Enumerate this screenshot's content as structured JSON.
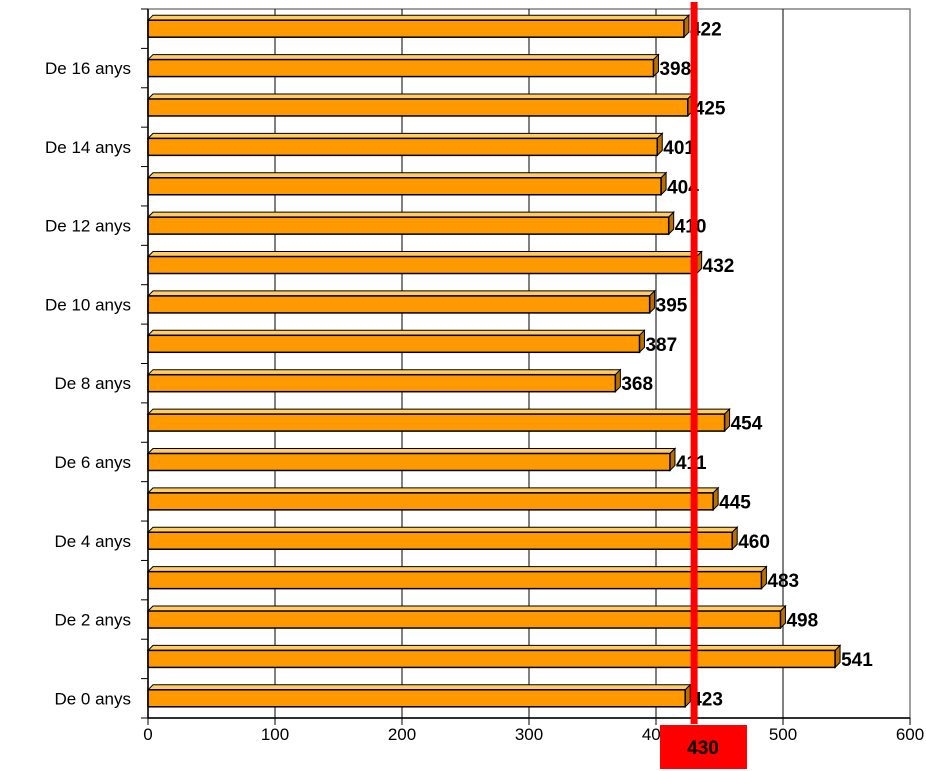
{
  "chart_data": {
    "type": "bar",
    "orientation": "horizontal",
    "categories": [
      "De 0 anys",
      "",
      "De 2 anys",
      "",
      "De 4 anys",
      "",
      "De 6 anys",
      "",
      "De 8 anys",
      "",
      "De 10 anys",
      "",
      "De 12 anys",
      "",
      "De 14 anys",
      "",
      "De 16 anys",
      ""
    ],
    "values": [
      423,
      541,
      498,
      483,
      460,
      445,
      411,
      454,
      368,
      387,
      395,
      432,
      410,
      404,
      401,
      425,
      398,
      422
    ],
    "value_labels": [
      "423",
      "541",
      "498",
      "483",
      "460",
      "445",
      "411",
      "454",
      "368",
      "387",
      "395",
      "432",
      "410",
      "404",
      "401",
      "425",
      "398",
      "422"
    ],
    "title": "",
    "xlabel": "",
    "ylabel": "",
    "xlim": [
      0,
      600
    ],
    "x_ticks": [
      "0",
      "100",
      "200",
      "300",
      "400",
      "500",
      "600"
    ],
    "grid": true,
    "legend": "none",
    "bar_color": "#FF9900",
    "bar_edge_color": "#000000",
    "reference_line": {
      "value": 430,
      "label": "430",
      "color": "#FF0000"
    }
  }
}
